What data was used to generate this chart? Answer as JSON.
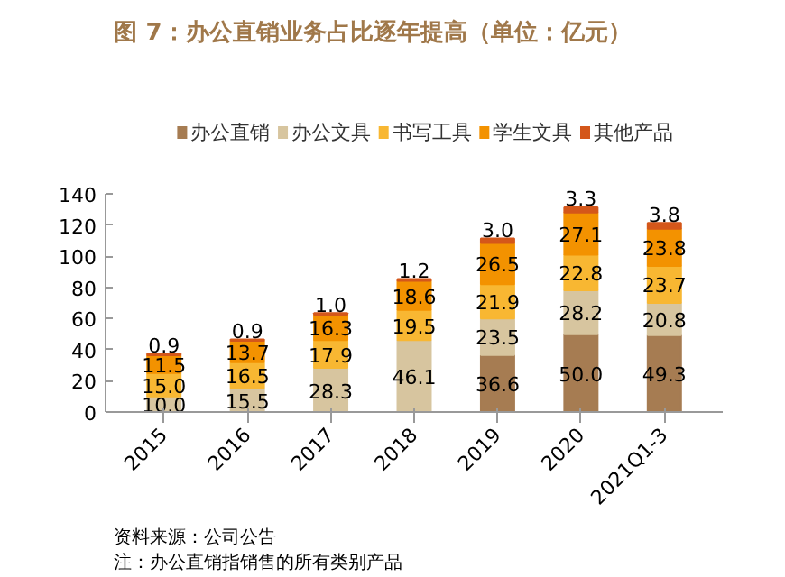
{
  "chart_data": {
    "type": "bar",
    "stacked": true,
    "title": "图 7：办公直销业务占比逐年提高（单位：亿元）",
    "categories": [
      "2015",
      "2016",
      "2017",
      "2018",
      "2019",
      "2020",
      "2021Q1-3"
    ],
    "series": [
      {
        "name": "办公直销",
        "color": "#a67c52",
        "values": [
          null,
          null,
          null,
          null,
          36.6,
          50.0,
          49.3
        ],
        "value_labels": [
          null,
          null,
          null,
          null,
          "36.6",
          "50.0",
          "49.3"
        ]
      },
      {
        "name": "办公文具",
        "color": "#d7c59f",
        "values": [
          10.0,
          15.5,
          28.3,
          46.1,
          23.5,
          28.2,
          20.8
        ],
        "value_labels": [
          "10.0",
          "15.5",
          "28.3",
          "46.1",
          "23.5",
          "28.2",
          "20.8"
        ]
      },
      {
        "name": "书写工具",
        "color": "#f8b732",
        "values": [
          15.0,
          16.5,
          17.9,
          19.5,
          21.9,
          22.8,
          23.7
        ],
        "value_labels": [
          "15.0",
          "16.5",
          "17.9",
          "19.5",
          "21.9",
          "22.8",
          "23.7"
        ]
      },
      {
        "name": "学生文具",
        "color": "#f39200",
        "values": [
          11.5,
          13.7,
          16.3,
          18.6,
          26.5,
          27.1,
          23.8
        ],
        "value_labels": [
          "11.5",
          "13.7",
          "16.3",
          "18.6",
          "26.5",
          "27.1",
          "23.8"
        ]
      },
      {
        "name": "其他产品",
        "color": "#d4571a",
        "values": [
          0.9,
          0.9,
          1.0,
          1.2,
          3.0,
          3.3,
          3.8
        ],
        "value_labels": [
          "0.9",
          "0.9",
          "1.0",
          "1.2",
          "3.0",
          "3.3",
          "3.8"
        ]
      }
    ],
    "ylim": [
      0,
      140
    ],
    "yticks": [
      0,
      20,
      40,
      60,
      80,
      100,
      120,
      140
    ],
    "grid": false,
    "legend": "top",
    "annotations": [
      "资料来源：公司公告",
      "注：办公直销指销售的所有类别产品"
    ]
  }
}
